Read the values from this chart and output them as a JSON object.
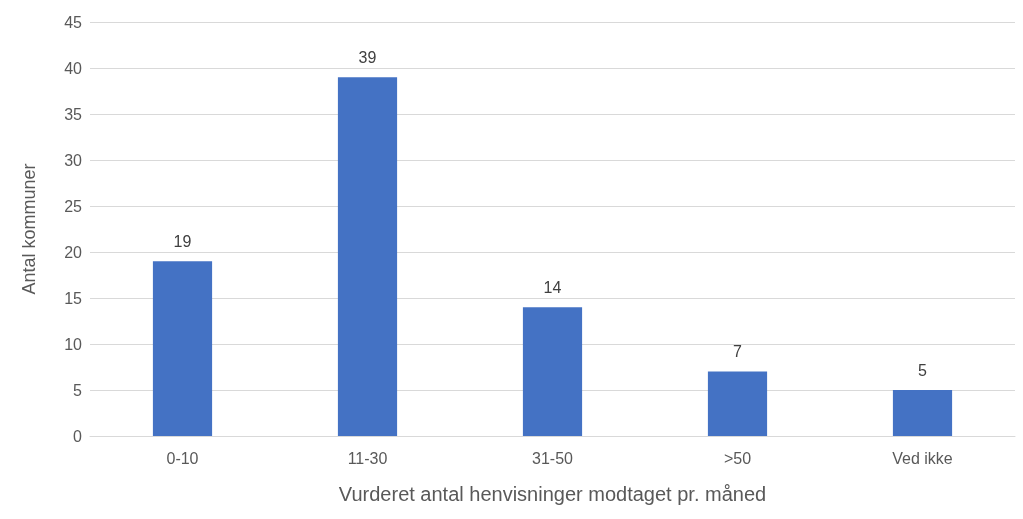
{
  "chart_data": {
    "type": "bar",
    "xlabel": "Vurderet antal henvisninger modtaget pr. måned",
    "ylabel": "Antal kommuner",
    "categories": [
      "0-10",
      "11-30",
      "31-50",
      ">50",
      "Ved ikke"
    ],
    "values": [
      19,
      39,
      14,
      7,
      5
    ],
    "color": "#4472c4",
    "ylim": [
      0,
      45
    ],
    "yticks": [
      0,
      5,
      10,
      15,
      20,
      25,
      30,
      35,
      40,
      45
    ],
    "grid": "y",
    "data_labels": true
  }
}
